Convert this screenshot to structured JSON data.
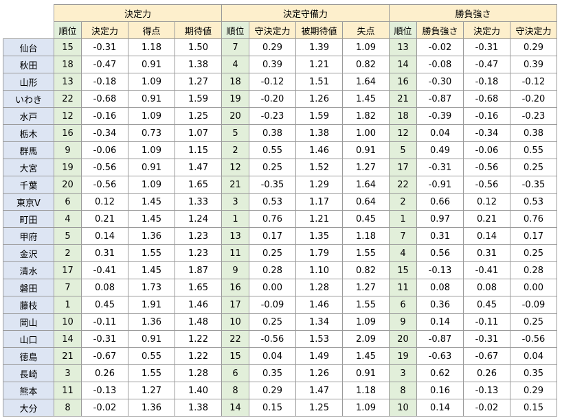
{
  "groups": [
    {
      "title": "決定力",
      "cols": [
        "順位",
        "決定力",
        "得点",
        "期待値"
      ]
    },
    {
      "title": "決定守備力",
      "cols": [
        "順位",
        "守決定力",
        "被期待値",
        "失点"
      ]
    },
    {
      "title": "勝負強さ",
      "cols": [
        "順位",
        "勝負強さ",
        "決定力",
        "守決定力"
      ]
    }
  ],
  "rows": [
    {
      "team": "仙台",
      "v": [
        "15",
        "-0.31",
        "1.18",
        "1.50",
        "7",
        "0.29",
        "1.39",
        "1.09",
        "13",
        "-0.02",
        "-0.31",
        "0.29"
      ]
    },
    {
      "team": "秋田",
      "v": [
        "18",
        "-0.47",
        "0.91",
        "1.38",
        "4",
        "0.39",
        "1.21",
        "0.82",
        "14",
        "-0.08",
        "-0.47",
        "0.39"
      ]
    },
    {
      "team": "山形",
      "v": [
        "13",
        "-0.18",
        "1.09",
        "1.27",
        "18",
        "-0.12",
        "1.51",
        "1.64",
        "16",
        "-0.30",
        "-0.18",
        "-0.12"
      ]
    },
    {
      "team": "いわき",
      "v": [
        "22",
        "-0.68",
        "0.91",
        "1.59",
        "19",
        "-0.20",
        "1.26",
        "1.45",
        "21",
        "-0.87",
        "-0.68",
        "-0.20"
      ]
    },
    {
      "team": "水戸",
      "v": [
        "12",
        "-0.16",
        "1.09",
        "1.25",
        "20",
        "-0.23",
        "1.59",
        "1.82",
        "18",
        "-0.39",
        "-0.16",
        "-0.23"
      ]
    },
    {
      "team": "栃木",
      "v": [
        "16",
        "-0.34",
        "0.73",
        "1.07",
        "5",
        "0.38",
        "1.38",
        "1.00",
        "12",
        "0.04",
        "-0.34",
        "0.38"
      ]
    },
    {
      "team": "群馬",
      "v": [
        "9",
        "-0.06",
        "1.09",
        "1.15",
        "2",
        "0.55",
        "1.46",
        "0.91",
        "5",
        "0.49",
        "-0.06",
        "0.55"
      ]
    },
    {
      "team": "大宮",
      "v": [
        "19",
        "-0.56",
        "0.91",
        "1.47",
        "12",
        "0.25",
        "1.52",
        "1.27",
        "17",
        "-0.31",
        "-0.56",
        "0.25"
      ]
    },
    {
      "team": "千葉",
      "v": [
        "20",
        "-0.56",
        "1.09",
        "1.65",
        "21",
        "-0.35",
        "1.29",
        "1.64",
        "22",
        "-0.91",
        "-0.56",
        "-0.35"
      ]
    },
    {
      "team": "東京V",
      "v": [
        "6",
        "0.12",
        "1.45",
        "1.33",
        "3",
        "0.53",
        "1.17",
        "0.64",
        "2",
        "0.66",
        "0.12",
        "0.53"
      ]
    },
    {
      "team": "町田",
      "v": [
        "4",
        "0.21",
        "1.45",
        "1.24",
        "1",
        "0.76",
        "1.21",
        "0.45",
        "1",
        "0.97",
        "0.21",
        "0.76"
      ]
    },
    {
      "team": "甲府",
      "v": [
        "5",
        "0.14",
        "1.36",
        "1.23",
        "13",
        "0.17",
        "1.35",
        "1.18",
        "7",
        "0.31",
        "0.14",
        "0.17"
      ]
    },
    {
      "team": "金沢",
      "v": [
        "2",
        "0.31",
        "1.55",
        "1.23",
        "11",
        "0.25",
        "1.79",
        "1.55",
        "4",
        "0.56",
        "0.31",
        "0.25"
      ]
    },
    {
      "team": "清水",
      "v": [
        "17",
        "-0.41",
        "1.45",
        "1.87",
        "9",
        "0.28",
        "1.10",
        "0.82",
        "15",
        "-0.13",
        "-0.41",
        "0.28"
      ]
    },
    {
      "team": "磐田",
      "v": [
        "7",
        "0.08",
        "1.73",
        "1.65",
        "16",
        "0.00",
        "1.28",
        "1.27",
        "11",
        "0.08",
        "0.08",
        "0.00"
      ]
    },
    {
      "team": "藤枝",
      "v": [
        "1",
        "0.45",
        "1.91",
        "1.46",
        "17",
        "-0.09",
        "1.46",
        "1.55",
        "6",
        "0.36",
        "0.45",
        "-0.09"
      ]
    },
    {
      "team": "岡山",
      "v": [
        "10",
        "-0.11",
        "1.36",
        "1.48",
        "10",
        "0.25",
        "1.34",
        "1.09",
        "9",
        "0.14",
        "-0.11",
        "0.25"
      ]
    },
    {
      "team": "山口",
      "v": [
        "14",
        "-0.31",
        "0.91",
        "1.22",
        "22",
        "-0.56",
        "1.53",
        "2.09",
        "20",
        "-0.87",
        "-0.31",
        "-0.56"
      ]
    },
    {
      "team": "徳島",
      "v": [
        "21",
        "-0.67",
        "0.55",
        "1.22",
        "15",
        "0.04",
        "1.49",
        "1.45",
        "19",
        "-0.63",
        "-0.67",
        "0.04"
      ]
    },
    {
      "team": "長崎",
      "v": [
        "3",
        "0.26",
        "1.55",
        "1.28",
        "6",
        "0.35",
        "1.26",
        "0.91",
        "3",
        "0.62",
        "0.26",
        "0.35"
      ]
    },
    {
      "team": "熊本",
      "v": [
        "11",
        "-0.13",
        "1.27",
        "1.40",
        "8",
        "0.29",
        "1.47",
        "1.18",
        "8",
        "0.16",
        "-0.13",
        "0.29"
      ]
    },
    {
      "team": "大分",
      "v": [
        "8",
        "-0.02",
        "1.36",
        "1.38",
        "14",
        "0.15",
        "1.25",
        "1.09",
        "10",
        "0.14",
        "-0.02",
        "0.15"
      ]
    }
  ]
}
